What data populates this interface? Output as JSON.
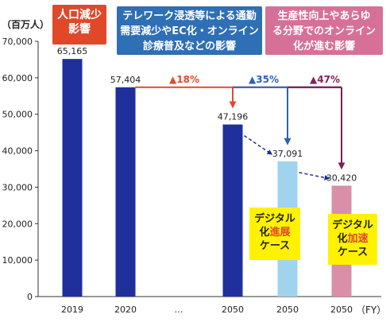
{
  "chart_data": {
    "type": "bar",
    "y_unit": "（百万人）",
    "x_unit": "（FY）",
    "ylim": [
      0,
      70000
    ],
    "yticks": [
      0,
      10000,
      20000,
      30000,
      40000,
      50000,
      60000,
      70000
    ],
    "ytick_labels": [
      "0",
      "10,000",
      "20,000",
      "30,000",
      "40,000",
      "50,000",
      "60,000",
      "70,000"
    ],
    "categories": [
      "2019",
      "2020",
      "…",
      "2050",
      "2050",
      "2050"
    ],
    "values": [
      65165,
      57404,
      null,
      47196,
      37091,
      30420
    ],
    "value_labels": [
      "65,165",
      "57,404",
      "",
      "47,196",
      "37,091",
      "30,420"
    ],
    "colors": [
      "#1f2f9c",
      "#1f2f9c",
      null,
      "#1f2f9c",
      "#9fd3ee",
      "#d98fa8"
    ],
    "reductions": [
      {
        "label": "▲18%",
        "color": "#e04a2c"
      },
      {
        "label": "▲35%",
        "color": "#2d62b5"
      },
      {
        "label": "▲47%",
        "color": "#8a1f5a"
      }
    ],
    "callouts": [
      {
        "lines": [
          "人口減少",
          "影響"
        ],
        "color": "#e0482a"
      },
      {
        "lines": [
          "テレワーク浸透等による通勤",
          "需要減少やEC化・オンライン",
          "診療普及などの影響"
        ],
        "color": "#2e6fb5"
      },
      {
        "lines": [
          "生産性向上やあらゆ",
          "る分野でのオンライン",
          "化が進む影響"
        ],
        "color": "#d77097"
      }
    ],
    "notes": [
      {
        "l1": "デジタル",
        "l2a": "化",
        "l2b": "進展",
        "l3": "ケース",
        "accent": "#e0482a"
      },
      {
        "l1": "デジタル",
        "l2a": "化",
        "l2b": "加速",
        "l3": "ケース",
        "accent": "#e0482a"
      }
    ]
  }
}
